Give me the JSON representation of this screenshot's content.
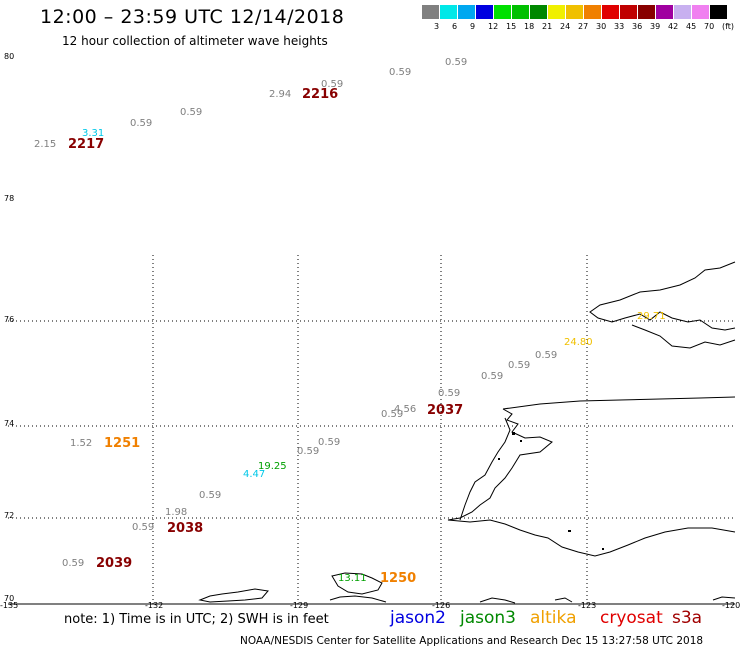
{
  "title": "12:00 – 23:59 UTC 12/14/2018",
  "subtitle": "12 hour collection of altimeter wave heights",
  "colorbar": {
    "colors": [
      "#808080",
      "#00e8e8",
      "#00a8f0",
      "#0000e0",
      "#00e000",
      "#00c000",
      "#008800",
      "#f0f000",
      "#f0c000",
      "#f08000",
      "#e00000",
      "#c00000",
      "#880000",
      "#a000a0",
      "#c8b0f0",
      "#f080f0",
      "#000000"
    ],
    "labels": [
      "3",
      "6",
      "9",
      "12",
      "15",
      "18",
      "21",
      "24",
      "27",
      "30",
      "33",
      "36",
      "39",
      "42",
      "45",
      "70",
      "(ft)"
    ]
  },
  "axes": {
    "lat_labels": [
      "80",
      "78",
      "76",
      "74",
      "72",
      "70"
    ],
    "lon_labels": [
      "-135",
      "-132",
      "-129",
      "-126",
      "-123",
      "-120"
    ]
  },
  "track_labels": [
    {
      "text": "2217",
      "color": "#880000"
    },
    {
      "text": "2216",
      "color": "#880000"
    },
    {
      "text": "2037",
      "color": "#880000"
    },
    {
      "text": "1251",
      "color": "#f08000"
    },
    {
      "text": "2038",
      "color": "#880000"
    },
    {
      "text": "2039",
      "color": "#880000"
    },
    {
      "text": "1250",
      "color": "#f08000"
    }
  ],
  "wave_values": [
    {
      "text": "2.15",
      "color": "#808080"
    },
    {
      "text": "3.31",
      "color": "#00c8e8"
    },
    {
      "text": "0.59",
      "color": "#808080"
    },
    {
      "text": "0.59",
      "color": "#808080"
    },
    {
      "text": "2.94",
      "color": "#808080"
    },
    {
      "text": "0.59",
      "color": "#808080"
    },
    {
      "text": "0.59",
      "color": "#808080"
    },
    {
      "text": "0.59",
      "color": "#808080"
    },
    {
      "text": "29.71",
      "color": "#f0c000"
    },
    {
      "text": "24.80",
      "color": "#f0c000"
    },
    {
      "text": "0.59",
      "color": "#808080"
    },
    {
      "text": "0.59",
      "color": "#808080"
    },
    {
      "text": "0.59",
      "color": "#808080"
    },
    {
      "text": "0.59",
      "color": "#808080"
    },
    {
      "text": "4.56",
      "color": "#808080"
    },
    {
      "text": "0.59",
      "color": "#808080"
    },
    {
      "text": "1.52",
      "color": "#808080"
    },
    {
      "text": "0.59",
      "color": "#808080"
    },
    {
      "text": "0.59",
      "color": "#808080"
    },
    {
      "text": "19.25",
      "color": "#00a000"
    },
    {
      "text": "4.47",
      "color": "#00c8e8"
    },
    {
      "text": "0.59",
      "color": "#808080"
    },
    {
      "text": "1.98",
      "color": "#808080"
    },
    {
      "text": "0.59",
      "color": "#808080"
    },
    {
      "text": "0.59",
      "color": "#808080"
    },
    {
      "text": "13.11",
      "color": "#00a000"
    }
  ],
  "note": "note:  1) Time is in UTC;  2) SWH is in feet",
  "satellites": [
    {
      "name": "jason2",
      "color": "#0000e0"
    },
    {
      "name": "jason3",
      "color": "#008800"
    },
    {
      "name": "altika",
      "color": "#f0a000"
    },
    {
      "name": "cryosat",
      "color": "#e00000"
    },
    {
      "name": "s3a",
      "color": "#a00000"
    }
  ],
  "credit": "NOAA/NESDIS Center for Satellite Applications and Research    Dec 15 13:27:58 UTC 2018"
}
